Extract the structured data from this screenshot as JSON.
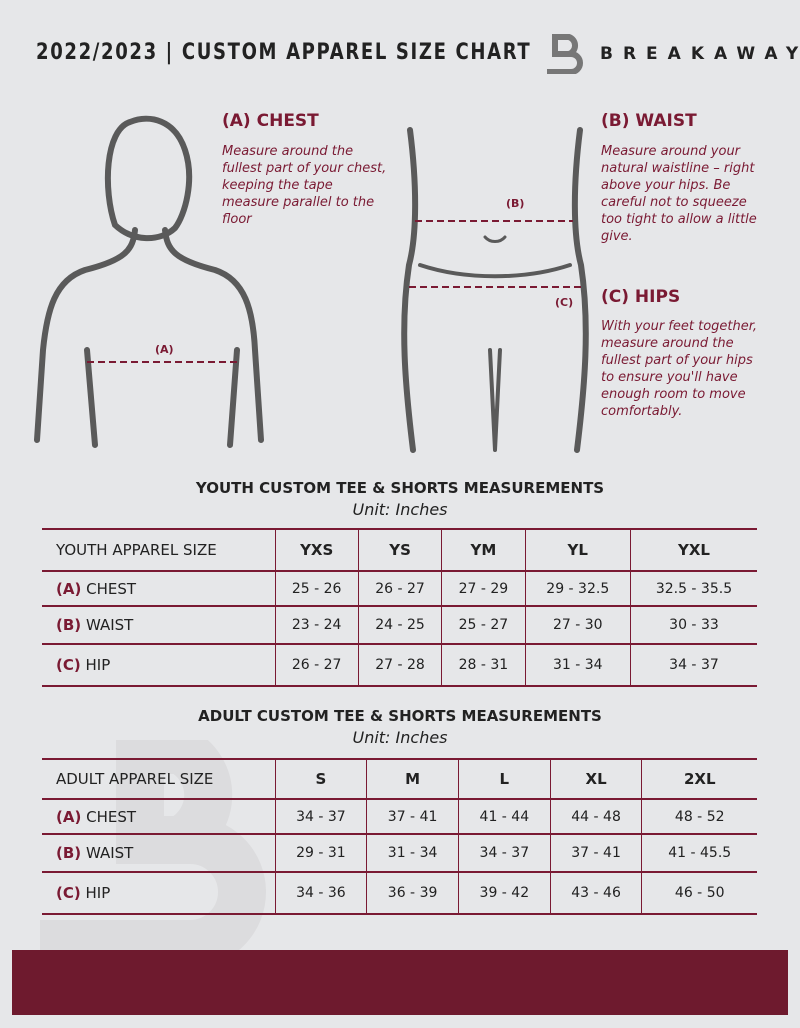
{
  "header": {
    "title": "2022/2023  |  CUSTOM APPAREL SIZE CHART",
    "brand": "BREAKAWAY"
  },
  "colors": {
    "accent": "#7a1a33",
    "background": "#e6e7e9",
    "bar": "#6e1a2e"
  },
  "guide": {
    "chest": {
      "heading": "(A) CHEST",
      "text": "Measure around the fullest part of your chest, keeping the tape measure parallel to the floor",
      "marker": "(A)"
    },
    "waist": {
      "heading": "(B) WAIST",
      "text": "Measure around your natural waistline – right above your hips. Be careful not to squeeze too tight to allow a little give.",
      "marker": "(B)"
    },
    "hips": {
      "heading": "(C) HIPS",
      "text": "With your feet together, measure around the fullest part of your hips to ensure you'll have enough room to move comfortably.",
      "marker": "(C)"
    }
  },
  "youth": {
    "title": "YOUTH CUSTOM TEE & SHORTS MEASUREMENTS",
    "unit": "Unit: Inches",
    "label": "YOUTH APPAREL SIZE",
    "sizes": [
      "YXS",
      "YS",
      "YM",
      "YL",
      "YXL"
    ],
    "rows": [
      {
        "key": "(A)",
        "name": "CHEST",
        "values": [
          "25 - 26",
          "26 - 27",
          "27 - 29",
          "29 - 32.5",
          "32.5 - 35.5"
        ]
      },
      {
        "key": "(B)",
        "name": "WAIST",
        "values": [
          "23 - 24",
          "24 - 25",
          "25 - 27",
          "27 - 30",
          "30 - 33"
        ]
      },
      {
        "key": "(C)",
        "name": "HIP",
        "values": [
          "26 - 27",
          "27 - 28",
          "28 - 31",
          "31 - 34",
          "34 - 37"
        ]
      }
    ]
  },
  "adult": {
    "title": "ADULT CUSTOM TEE & SHORTS MEASUREMENTS",
    "unit": "Unit: Inches",
    "label": "ADULT APPAREL SIZE",
    "sizes": [
      "S",
      "M",
      "L",
      "XL",
      "2XL"
    ],
    "rows": [
      {
        "key": "(A)",
        "name": "CHEST",
        "values": [
          "34 - 37",
          "37 - 41",
          "41 - 44",
          "44 - 48",
          "48 - 52"
        ]
      },
      {
        "key": "(B)",
        "name": "WAIST",
        "values": [
          "29 - 31",
          "31 - 34",
          "34 - 37",
          "37 - 41",
          "41 - 45.5"
        ]
      },
      {
        "key": "(C)",
        "name": "HIP",
        "values": [
          "34 - 36",
          "36 - 39",
          "39 - 42",
          "43 - 46",
          "46 - 50"
        ]
      }
    ]
  }
}
